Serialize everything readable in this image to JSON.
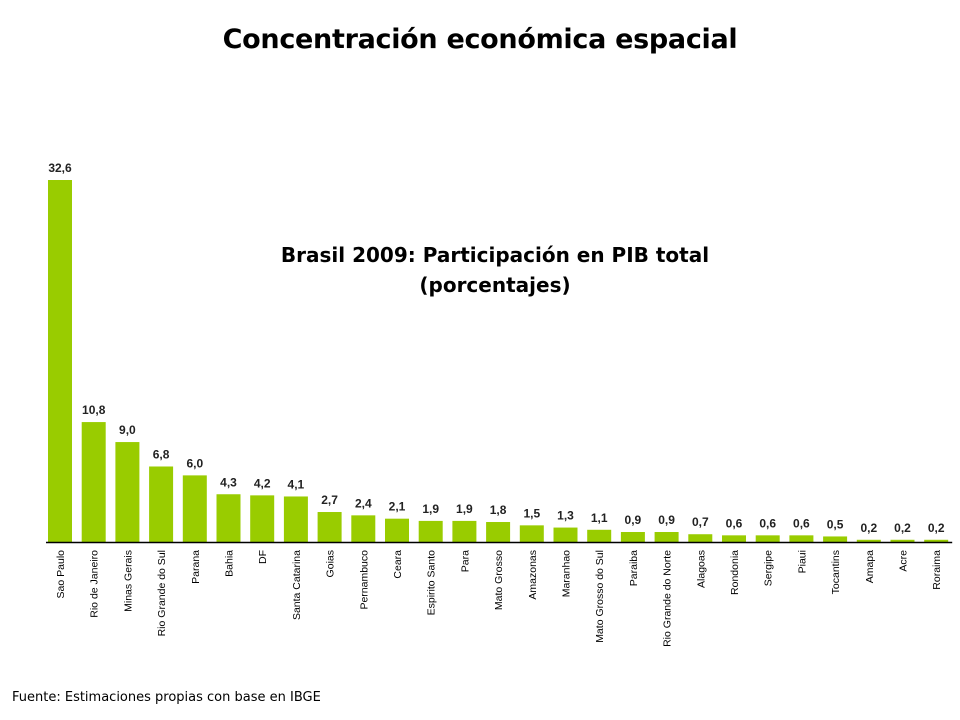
{
  "slide": {
    "title": "Concentración económica espacial",
    "source": "Fuente: Estimaciones propias con base en IBGE"
  },
  "chart_data": {
    "type": "bar",
    "title_lines": [
      "Brasil 2009: Participación en PIB total",
      "(porcentajes)"
    ],
    "categories": [
      "Sao Paulo",
      "Rio de Janeiro",
      "Minas Gerais",
      "Rio Grande do Sul",
      "Parana",
      "Bahia",
      "DF",
      "Santa Catarina",
      "Goias",
      "Pernambuco",
      "Ceara",
      "Espirito Santo",
      "Para",
      "Mato Grosso",
      "Amazonas",
      "Maranhao",
      "Mato Grosso do Sul",
      "Paraiba",
      "Rio Grande do Norte",
      "Alagoas",
      "Rondonia",
      "Sergipe",
      "Piaui",
      "Tocantins",
      "Amapa",
      "Acre",
      "Roraima"
    ],
    "values": [
      32.6,
      10.8,
      9.0,
      6.8,
      6.0,
      4.3,
      4.2,
      4.1,
      2.7,
      2.4,
      2.1,
      1.9,
      1.9,
      1.8,
      1.5,
      1.3,
      1.1,
      0.9,
      0.9,
      0.7,
      0.6,
      0.6,
      0.6,
      0.5,
      0.2,
      0.2,
      0.2
    ],
    "value_labels": [
      "32,6",
      "10,8",
      "9,0",
      "6,8",
      "6,0",
      "4,3",
      "4,2",
      "4,1",
      "2,7",
      "2,4",
      "2,1",
      "1,9",
      "1,9",
      "1,8",
      "1,5",
      "1,3",
      "1,1",
      "0,9",
      "0,9",
      "0,7",
      "0,6",
      "0,6",
      "0,6",
      "0,5",
      "0,2",
      "0,2",
      "0,2"
    ],
    "bar_color": "#99cc00",
    "axis_color": "#000000",
    "ylim": [
      0,
      32.6
    ],
    "grid": false,
    "legend": "none"
  }
}
